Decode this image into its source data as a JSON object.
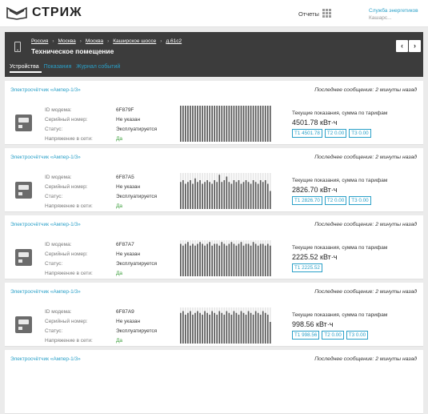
{
  "header": {
    "brand": "СТРИЖ",
    "reports_label": "Отчеты",
    "user_org": "Служба энергетиков",
    "user_sub": "Кашарс..."
  },
  "location": {
    "breadcrumb": [
      "Россия",
      "Москва",
      "Москва",
      "Каширское шоссе",
      "д.61с2"
    ],
    "title": "Техническое помещение"
  },
  "tabs": [
    {
      "label": "Устройства",
      "active": true
    },
    {
      "label": "Показания",
      "active": false
    },
    {
      "label": "Журнал событий",
      "active": false
    }
  ],
  "labels": {
    "modem_id": "ID модема:",
    "serial": "Серийный номер:",
    "status": "Статус:",
    "voltage": "Напряжение в сети:",
    "readings_caption": "Текущие показания, сумма по тарифам"
  },
  "devices": [
    {
      "title": "Электросчётчик «Ампер-1/3»",
      "last_message": "Последнее сообщение: 2 минуты назад",
      "modem_id": "6F879F",
      "serial": "Не указан",
      "status": "Эксплуатируется",
      "voltage": "Да",
      "total": "4501.78 кВт·ч",
      "tariffs": [
        "T1 4501.78",
        "T2 0.00",
        "T3 0.00"
      ],
      "activity": [
        1,
        1,
        1,
        1,
        1,
        1,
        1,
        1,
        1,
        1,
        1,
        1,
        1,
        1,
        1,
        1,
        1,
        1,
        1,
        1,
        1,
        1,
        1,
        1,
        1,
        1,
        1,
        1,
        1,
        1,
        1,
        1,
        1,
        1,
        1,
        1,
        1,
        1
      ]
    },
    {
      "title": "Электросчётчик «Ампер-1/3»",
      "last_message": "Последнее сообщение: 2 минуты назад",
      "modem_id": "6F87A5",
      "serial": "Не указан",
      "status": "Эксплуатируется",
      "voltage": "Да",
      "total": "2826.70 кВт·ч",
      "tariffs": [
        "T1 2826.70",
        "T2 0.00",
        "T3 0.00"
      ],
      "activity": [
        0.75,
        0.8,
        0.7,
        0.75,
        0.8,
        0.7,
        0.85,
        0.75,
        0.8,
        0.7,
        0.75,
        0.8,
        0.75,
        0.7,
        0.8,
        0.75,
        0.95,
        0.75,
        0.8,
        0.9,
        0.75,
        0.7,
        0.8,
        0.75,
        0.8,
        0.7,
        0.75,
        0.8,
        0.75,
        0.7,
        0.8,
        0.75,
        0.7,
        0.8,
        0.75,
        0.8,
        0.7,
        0.5
      ]
    },
    {
      "title": "Электросчётчик «Ампер-1/3»",
      "last_message": "Последнее сообщение: 2 минуты назад",
      "modem_id": "6F87A7",
      "serial": "Не указан",
      "status": "Эксплуатируется",
      "voltage": "Да",
      "total": "2225.52 кВт·ч",
      "tariffs": [
        "T1 2225.52"
      ],
      "activity": [
        0.9,
        0.85,
        0.9,
        0.95,
        0.85,
        0.9,
        0.85,
        0.9,
        0.95,
        0.9,
        0.85,
        0.9,
        0.95,
        0.85,
        0.9,
        0.9,
        0.85,
        0.95,
        0.9,
        0.85,
        0.9,
        0.95,
        0.9,
        0.85,
        0.9,
        0.95,
        0.85,
        0.9,
        0.9,
        0.85,
        0.95,
        0.9,
        0.85,
        0.9,
        0.9,
        0.85,
        0.9,
        0.85
      ]
    },
    {
      "title": "Электросчётчик «Ампер-1/3»",
      "last_message": "Последнее сообщение: 2 минуты назад",
      "modem_id": "6F87A9",
      "serial": "Не указан",
      "status": "Эксплуатируется",
      "voltage": "Да",
      "total": "998.56 кВт·ч",
      "tariffs": [
        "T1 998.56",
        "T2 0.00",
        "T3 0.00"
      ],
      "activity": [
        0.85,
        0.9,
        0.8,
        0.85,
        0.9,
        0.8,
        0.85,
        0.9,
        0.85,
        0.8,
        0.9,
        0.85,
        0.8,
        0.9,
        0.85,
        0.8,
        0.9,
        0.85,
        0.8,
        0.9,
        0.85,
        0.8,
        0.9,
        0.85,
        0.8,
        0.9,
        0.85,
        0.8,
        0.9,
        0.85,
        0.8,
        0.9,
        0.85,
        0.8,
        0.9,
        0.85,
        0.8,
        0.6
      ]
    },
    {
      "title": "Электросчётчик «Ампер-1/3»",
      "last_message": "Последнее сообщение: 2 минуты назад"
    }
  ]
}
